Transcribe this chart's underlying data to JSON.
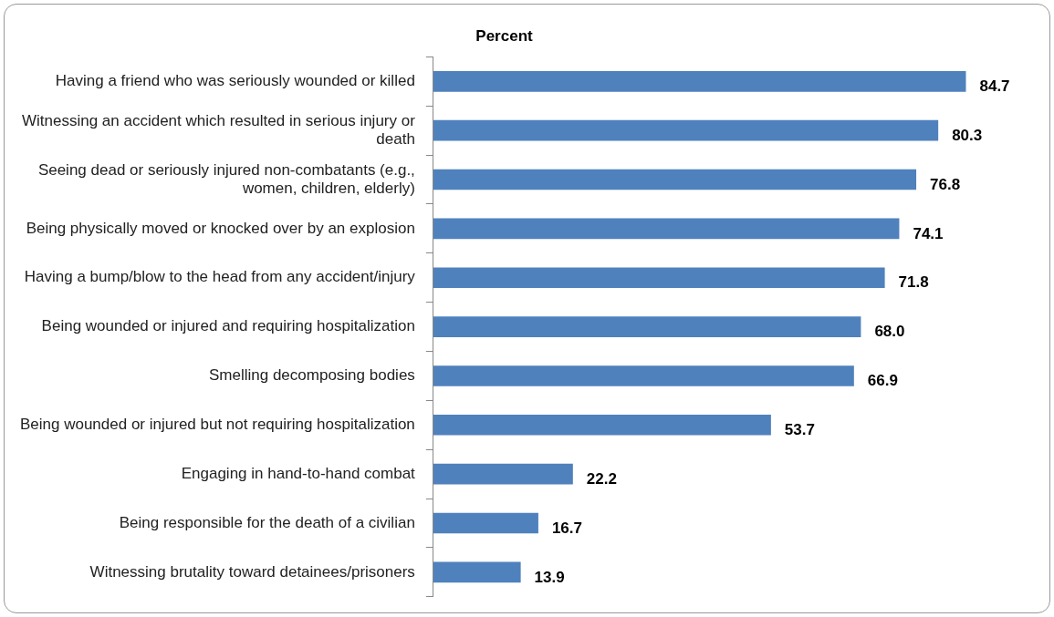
{
  "chart_data": {
    "type": "bar",
    "orientation": "horizontal",
    "title": "Percent",
    "categories": [
      "Having a friend who was seriously wounded or killed",
      "Witnessing an accident which resulted in serious injury or death",
      "Seeing dead or seriously injured non-combatants (e.g., women, children, elderly)",
      "Being physically moved or knocked over by an explosion",
      "Having a bump/blow to the head from any accident/injury",
      "Being wounded or injured and requiring hospitalization",
      "Smelling decomposing bodies",
      "Being wounded or injured but not requiring hospitalization",
      "Engaging in hand-to-hand combat",
      "Being responsible for the death of a civilian",
      "Witnessing brutality toward detainees/prisoners"
    ],
    "values": [
      84.7,
      80.3,
      76.8,
      74.1,
      71.8,
      68.0,
      66.9,
      53.7,
      22.2,
      16.7,
      13.9
    ],
    "value_labels": [
      "84.7",
      "80.3",
      "76.8",
      "74.1",
      "71.8",
      "68.0",
      "66.9",
      "53.7",
      "22.2",
      "16.7",
      "13.9"
    ],
    "color": "#4f81bd",
    "tick_labels": "y",
    "legend": false
  }
}
